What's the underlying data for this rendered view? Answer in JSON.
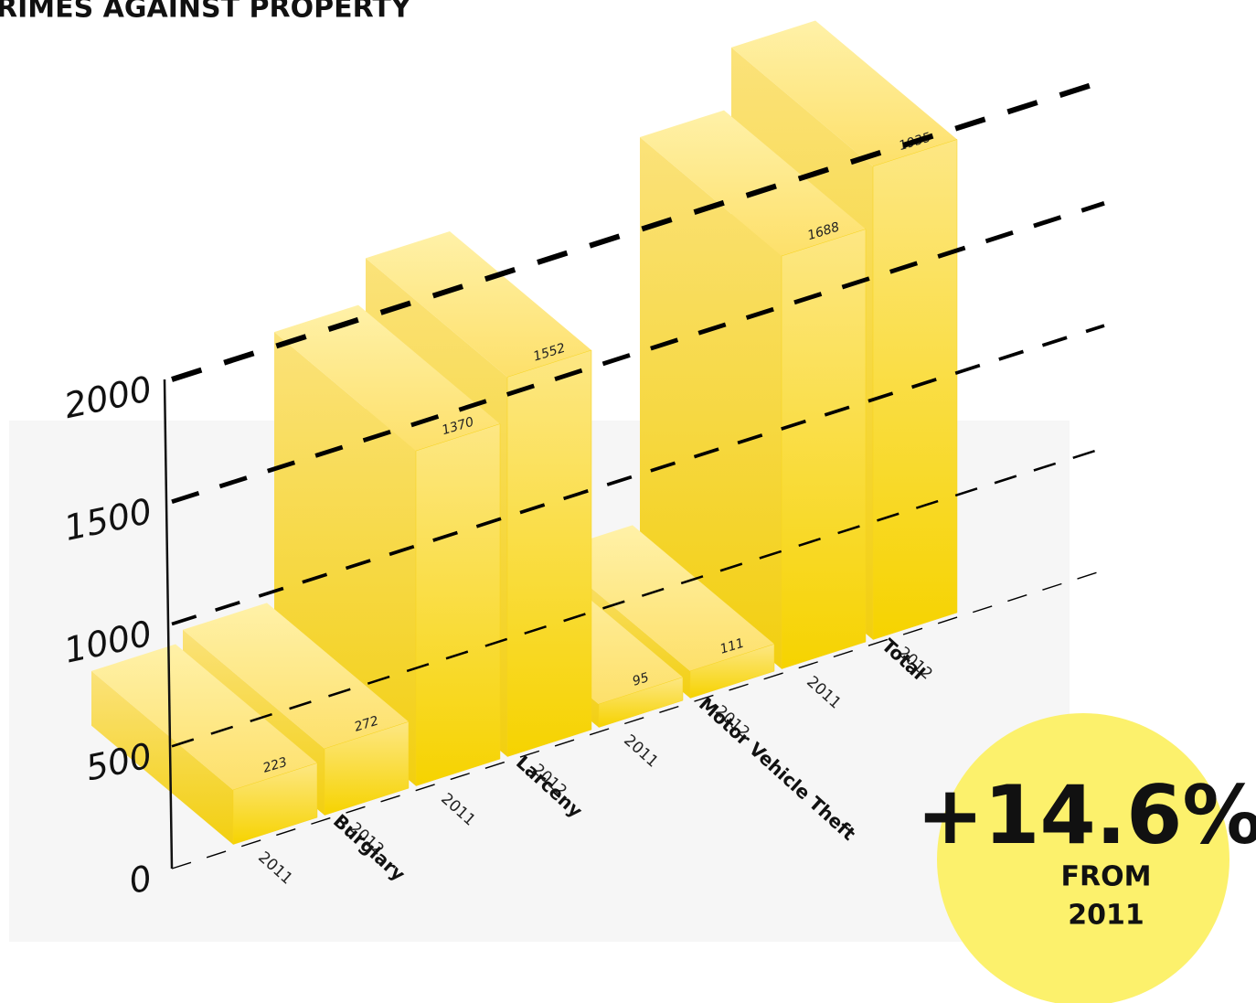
{
  "chart_data": {
    "type": "bar3d",
    "title": "CRIMES AGAINST PROPERTY",
    "categories": [
      "Burglary",
      "Larceny",
      "Motor Vehicle Theft",
      "Total"
    ],
    "series": [
      {
        "name": "2011",
        "color": "#f7d31a",
        "values": [
          223,
          1370,
          95,
          1688
        ]
      },
      {
        "name": "2012",
        "color": "#f7d31a",
        "values": [
          272,
          1552,
          111,
          1935
        ]
      }
    ],
    "ylim": [
      0,
      2000
    ],
    "yticks": [
      0,
      500,
      1000,
      1500,
      2000
    ],
    "grid": true,
    "annotations": [
      {
        "text": "+14.6%"
      },
      {
        "text": "FROM"
      },
      {
        "text": "2011"
      }
    ]
  }
}
